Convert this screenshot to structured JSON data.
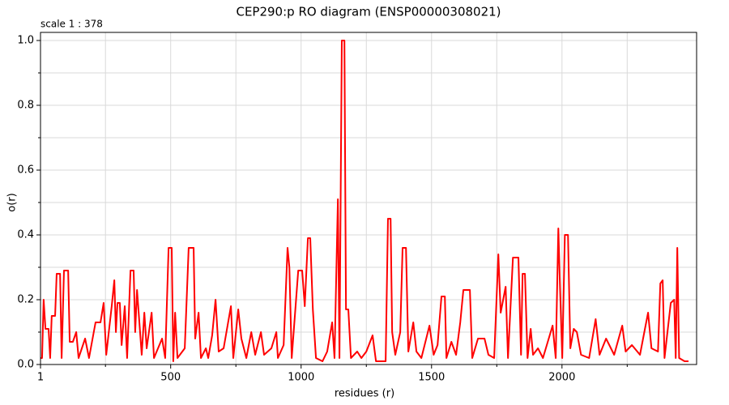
{
  "chart_data": {
    "type": "line",
    "title": "CEP290:p RO diagram (ENSP00000308021)",
    "annotation": "scale 1 : 378",
    "xlabel": "residues (r)",
    "ylabel": "o(r)",
    "xlim": [
      1,
      2516
    ],
    "xticks": [
      1,
      500,
      1000,
      1500,
      2000
    ],
    "xminorticks": [
      250,
      750,
      1250,
      1750,
      2250
    ],
    "ylim": [
      0,
      1.025
    ],
    "yticks": [
      {
        "value": 0,
        "label": "0.0"
      },
      0.2,
      0.4,
      0.6,
      0.8,
      {
        "value": 1,
        "label": "1.0"
      }
    ],
    "yminorticks": [
      0.1,
      0.3,
      0.5,
      0.7,
      0.9
    ],
    "grid": true,
    "series": [
      {
        "name": "o(r)",
        "color": "#ff0000",
        "x": [
          1,
          7,
          13,
          20,
          32,
          38,
          44,
          57,
          63,
          76,
          82,
          91,
          107,
          113,
          125,
          138,
          147,
          172,
          187,
          212,
          231,
          243,
          253,
          274,
          284,
          290,
          296,
          305,
          312,
          324,
          333,
          346,
          358,
          364,
          371,
          380,
          389,
          399,
          408,
          427,
          436,
          467,
          479,
          492,
          504,
          510,
          517,
          526,
          554,
          569,
          588,
          594,
          607,
          616,
          635,
          644,
          659,
          672,
          684,
          703,
          731,
          740,
          759,
          771,
          790,
          809,
          824,
          846,
          858,
          886,
          905,
          911,
          933,
          948,
          955,
          964,
          989,
          1004,
          1014,
          1026,
          1035,
          1045,
          1057,
          1082,
          1100,
          1119,
          1128,
          1141,
          1147,
          1156,
          1166,
          1172,
          1181,
          1191,
          1215,
          1231,
          1250,
          1274,
          1287,
          1324,
          1333,
          1343,
          1349,
          1361,
          1380,
          1389,
          1402,
          1411,
          1430,
          1442,
          1461,
          1492,
          1508,
          1523,
          1538,
          1551,
          1557,
          1576,
          1594,
          1610,
          1622,
          1647,
          1656,
          1678,
          1703,
          1718,
          1740,
          1756,
          1765,
          1784,
          1793,
          1812,
          1833,
          1843,
          1849,
          1858,
          1868,
          1880,
          1889,
          1908,
          1927,
          1964,
          1976,
          1986,
          1992,
          2001,
          2011,
          2023,
          2032,
          2045,
          2057,
          2073,
          2104,
          2129,
          2144,
          2169,
          2200,
          2231,
          2244,
          2268,
          2299,
          2318,
          2330,
          2343,
          2368,
          2377,
          2386,
          2393,
          2417,
          2430,
          2436,
          2442,
          2449,
          2470,
          2485
        ],
        "values": [
          0.02,
          0.02,
          0.2,
          0.11,
          0.11,
          0.02,
          0.15,
          0.15,
          0.28,
          0.28,
          0.02,
          0.29,
          0.29,
          0.07,
          0.07,
          0.1,
          0.02,
          0.08,
          0.02,
          0.13,
          0.13,
          0.19,
          0.03,
          0.18,
          0.26,
          0.1,
          0.19,
          0.19,
          0.06,
          0.18,
          0.02,
          0.29,
          0.29,
          0.1,
          0.23,
          0.13,
          0.03,
          0.16,
          0.05,
          0.16,
          0.02,
          0.08,
          0.02,
          0.36,
          0.36,
          0.01,
          0.16,
          0.02,
          0.05,
          0.36,
          0.36,
          0.08,
          0.16,
          0.02,
          0.05,
          0.02,
          0.09,
          0.2,
          0.04,
          0.05,
          0.18,
          0.02,
          0.17,
          0.08,
          0.02,
          0.1,
          0.03,
          0.1,
          0.03,
          0.05,
          0.1,
          0.02,
          0.06,
          0.36,
          0.3,
          0.02,
          0.29,
          0.29,
          0.18,
          0.39,
          0.39,
          0.17,
          0.02,
          0.01,
          0.04,
          0.13,
          0.02,
          0.51,
          0.02,
          1.0,
          1.0,
          0.17,
          0.17,
          0.02,
          0.04,
          0.02,
          0.04,
          0.09,
          0.01,
          0.01,
          0.45,
          0.45,
          0.1,
          0.03,
          0.1,
          0.36,
          0.36,
          0.04,
          0.13,
          0.04,
          0.02,
          0.12,
          0.03,
          0.06,
          0.21,
          0.21,
          0.02,
          0.07,
          0.03,
          0.13,
          0.23,
          0.23,
          0.02,
          0.08,
          0.08,
          0.03,
          0.02,
          0.34,
          0.16,
          0.24,
          0.02,
          0.33,
          0.33,
          0.03,
          0.28,
          0.28,
          0.02,
          0.11,
          0.03,
          0.05,
          0.02,
          0.12,
          0.02,
          0.42,
          0.25,
          0.02,
          0.4,
          0.4,
          0.05,
          0.11,
          0.1,
          0.03,
          0.02,
          0.14,
          0.03,
          0.08,
          0.03,
          0.12,
          0.04,
          0.06,
          0.03,
          0.11,
          0.16,
          0.05,
          0.04,
          0.25,
          0.26,
          0.02,
          0.19,
          0.2,
          0.02,
          0.36,
          0.02,
          0.01,
          0.01
        ]
      }
    ]
  }
}
